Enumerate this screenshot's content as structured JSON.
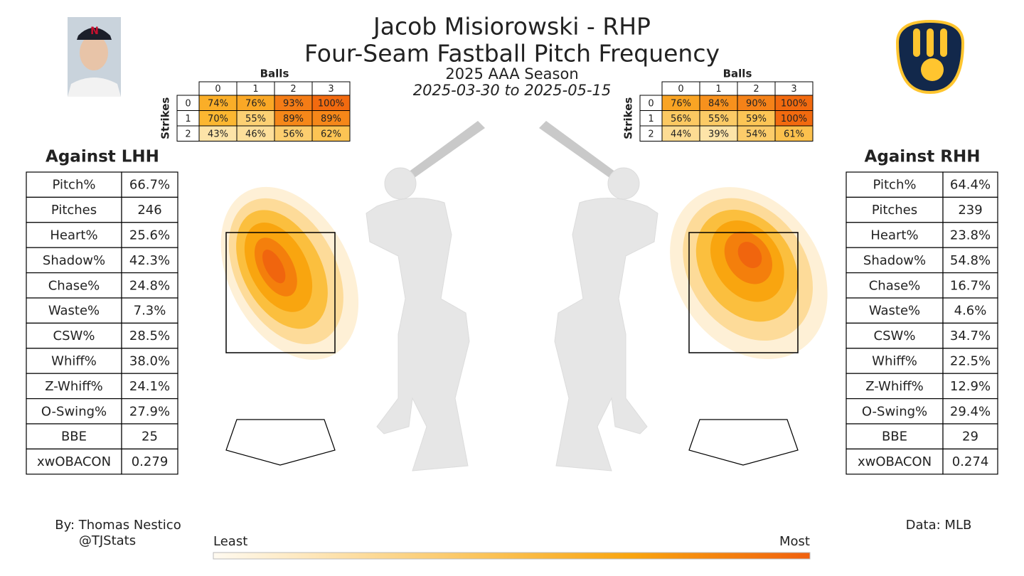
{
  "header": {
    "title": "Jacob Misiorowski - RHP",
    "subtitle": "Four-Seam Fastball Pitch Frequency",
    "season": "2025 AAA Season",
    "date_range": "2025-03-30 to 2025-05-15"
  },
  "count_tables": [
    {
      "columns_title": "Balls",
      "rows_title": "Strikes",
      "columns": [
        "0",
        "1",
        "2",
        "3"
      ],
      "rows": [
        "0",
        "1",
        "2"
      ],
      "cells": [
        [
          "74%",
          "76%",
          "93%",
          "100%"
        ],
        [
          "70%",
          "55%",
          "89%",
          "89%"
        ],
        [
          "43%",
          "46%",
          "56%",
          "62%"
        ]
      ]
    },
    {
      "columns_title": "Balls",
      "rows_title": "Strikes",
      "columns": [
        "0",
        "1",
        "2",
        "3"
      ],
      "rows": [
        "0",
        "1",
        "2"
      ],
      "cells": [
        [
          "76%",
          "84%",
          "90%",
          "100%"
        ],
        [
          "56%",
          "55%",
          "59%",
          "100%"
        ],
        [
          "44%",
          "39%",
          "54%",
          "61%"
        ]
      ]
    }
  ],
  "stat_tables": [
    {
      "title": "Against LHH",
      "rows": [
        [
          "Pitch%",
          "66.7%"
        ],
        [
          "Pitches",
          "246"
        ],
        [
          "Heart%",
          "25.6%"
        ],
        [
          "Shadow%",
          "42.3%"
        ],
        [
          "Chase%",
          "24.8%"
        ],
        [
          "Waste%",
          "7.3%"
        ],
        [
          "CSW%",
          "28.5%"
        ],
        [
          "Whiff%",
          "38.0%"
        ],
        [
          "Z-Whiff%",
          "24.1%"
        ],
        [
          "O-Swing%",
          "27.9%"
        ],
        [
          "BBE",
          "25"
        ],
        [
          "xwOBACON",
          "0.279"
        ]
      ]
    },
    {
      "title": "Against RHH",
      "rows": [
        [
          "Pitch%",
          "64.4%"
        ],
        [
          "Pitches",
          "239"
        ],
        [
          "Heart%",
          "23.8%"
        ],
        [
          "Shadow%",
          "54.8%"
        ],
        [
          "Chase%",
          "16.7%"
        ],
        [
          "Waste%",
          "4.6%"
        ],
        [
          "CSW%",
          "34.7%"
        ],
        [
          "Whiff%",
          "22.5%"
        ],
        [
          "Z-Whiff%",
          "12.9%"
        ],
        [
          "O-Swing%",
          "29.4%"
        ],
        [
          "BBE",
          "29"
        ],
        [
          "xwOBACON",
          "0.274"
        ]
      ]
    }
  ],
  "legend": {
    "low": "Least",
    "high": "Most"
  },
  "footer": {
    "author": "By: Thomas Nestico",
    "handle": "@TJStats",
    "source": "Data: MLB"
  }
}
